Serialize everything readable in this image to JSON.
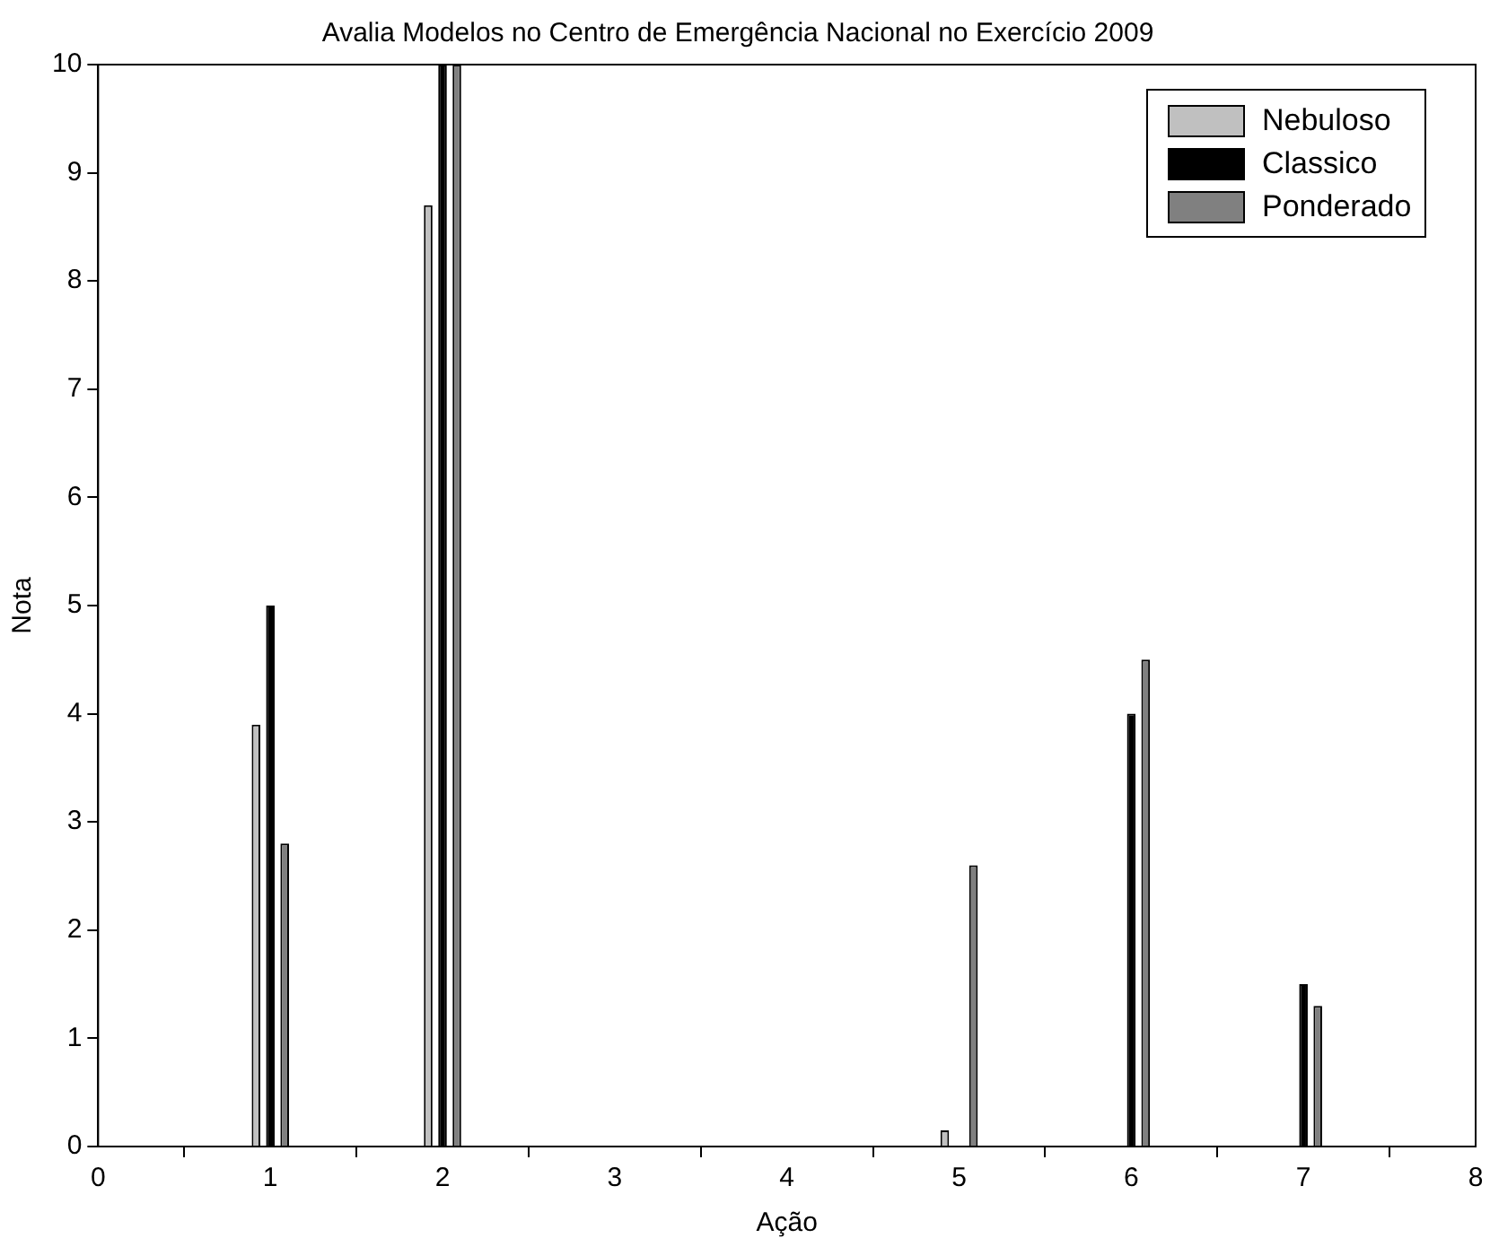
{
  "chart_data": {
    "type": "bar",
    "title": "Avalia Modelos no Centro de Emergência Nacional no Exercício 2009",
    "xlabel": "Ação",
    "ylabel": "Nota",
    "x": [
      1,
      2,
      5,
      6,
      7
    ],
    "series": [
      {
        "name": "Nebuloso",
        "color": "#c0c0c0",
        "values": [
          3.9,
          8.7,
          0.15,
          0,
          0
        ]
      },
      {
        "name": "Classico",
        "color": "#000000",
        "values": [
          5,
          10,
          0,
          4,
          1.5
        ]
      },
      {
        "name": "Ponderado",
        "color": "#808080",
        "values": [
          2.8,
          10,
          2.6,
          4.5,
          1.3
        ]
      }
    ],
    "xlim": [
      0,
      8
    ],
    "xticks": [
      0,
      1,
      2,
      3,
      4,
      5,
      6,
      7,
      8
    ],
    "ylim": [
      0,
      10
    ],
    "yticks": [
      0,
      1,
      2,
      3,
      4,
      5,
      6,
      7,
      8,
      9,
      10
    ],
    "grid": false,
    "legend": "top right"
  }
}
